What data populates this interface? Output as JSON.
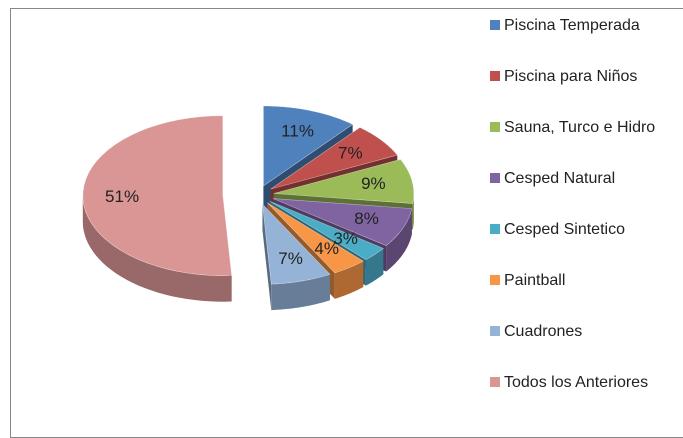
{
  "chart_data": {
    "type": "pie",
    "categories": [
      "Piscina Temperada",
      "Piscina para Niños",
      "Sauna, Turco e Hidro",
      "Cesped Natural",
      "Cesped Sintetico",
      "Paintball",
      "Cuadrones",
      "Todos los Anteriores"
    ],
    "values": [
      11,
      7,
      9,
      8,
      3,
      4,
      7,
      51
    ],
    "value_labels": [
      "11%",
      "7%",
      "9%",
      "8%",
      "3%",
      "4%",
      "7%",
      "51%"
    ],
    "colors": [
      "#4f81bd",
      "#c0504d",
      "#9bbb59",
      "#8064a2",
      "#4bacc6",
      "#f79646",
      "#95b3d7",
      "#d99694"
    ],
    "legend": "right"
  }
}
